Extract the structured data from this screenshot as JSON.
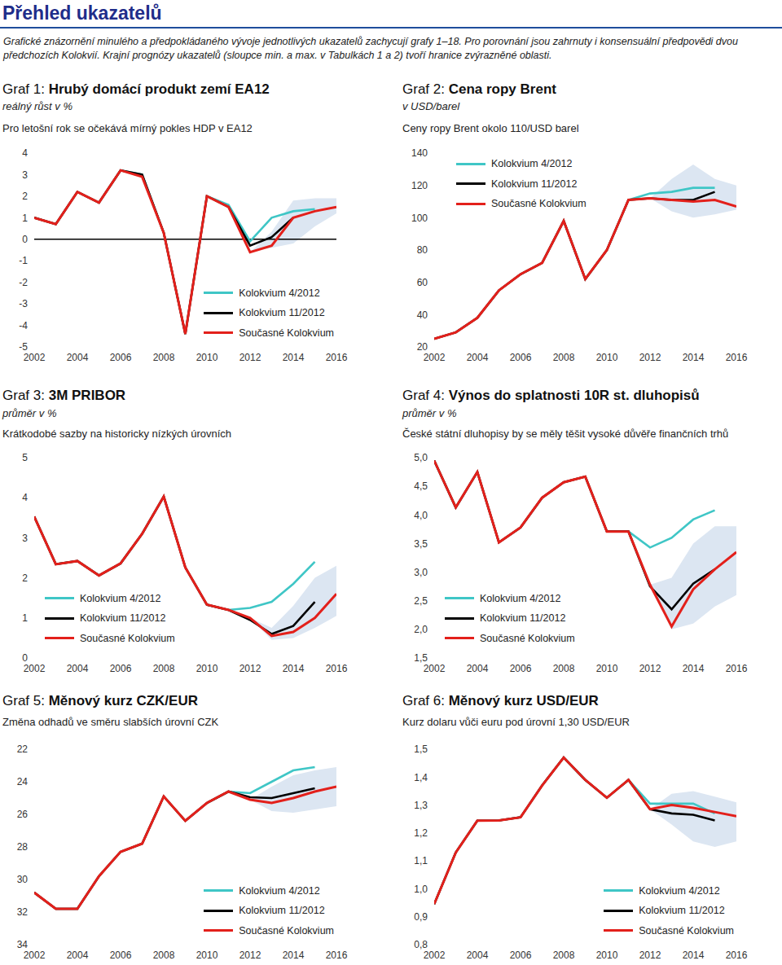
{
  "header": {
    "title": "Přehled ukazatelů",
    "text": "Grafické znázornění minulého a předpokládaného vývoje jednotlivých ukazatelů zachycují grafy 1–18. Pro porovnání jsou zahrnuty i konsensuální předpovědi dvou předchozích Kolokvií. Krajní prognózy ukazatelů (sloupce min. a max. v Tabulkách 1 a 2) tvoří hranice zvýrazněné oblasti."
  },
  "chart_data": [
    {
      "type": "line",
      "title": "Graf 1: Hrubý domácí produkt zemí EA12",
      "subtitle": "reálný růst v %",
      "annotation": "Pro letošní rok se očekává mírný pokles HDP v EA12",
      "grid": false,
      "legend": "lower right",
      "x": [
        2002,
        2003,
        2004,
        2005,
        2006,
        2007,
        2008,
        2009,
        2010,
        2011,
        2012,
        2013,
        2014,
        2015,
        2016
      ],
      "xlim": [
        2002,
        2016
      ],
      "xticks": [
        2002,
        2004,
        2006,
        2008,
        2010,
        2012,
        2014,
        2016
      ],
      "ylim": [
        -5,
        4
      ],
      "yticks": [
        -5,
        -4,
        -3,
        -2,
        -1,
        0,
        1,
        2,
        3,
        4
      ],
      "series": [
        {
          "name": "Kolokvium 4/2012",
          "color": "#3fc6c6",
          "values": [
            1.0,
            0.7,
            2.2,
            1.7,
            3.2,
            3.0,
            0.3,
            -4.4,
            2.0,
            1.6,
            -0.1,
            1.0,
            1.3,
            1.4,
            null
          ]
        },
        {
          "name": "Kolokvium 11/2012",
          "color": "#000000",
          "values": [
            1.0,
            0.7,
            2.2,
            1.7,
            3.2,
            3.0,
            0.3,
            -4.4,
            2.0,
            1.5,
            -0.3,
            0.1,
            1.0,
            null,
            null
          ]
        },
        {
          "name": "Současné Kolokvium",
          "color": "#e3201b",
          "values": [
            1.0,
            0.7,
            2.2,
            1.7,
            3.2,
            2.9,
            0.3,
            -4.4,
            2.0,
            1.5,
            -0.6,
            -0.3,
            1.0,
            1.3,
            1.5
          ]
        }
      ],
      "band": {
        "color": "#dce6f2",
        "x": [
          2012,
          2013,
          2014,
          2015,
          2016
        ],
        "min": [
          -0.6,
          -0.4,
          -0.2,
          0.6,
          1.2
        ],
        "max": [
          -0.6,
          0.35,
          1.8,
          1.9,
          1.9
        ]
      }
    },
    {
      "type": "line",
      "title": "Graf 2: Cena ropy Brent",
      "subtitle": "v USD/barel",
      "annotation": "Ceny ropy Brent okolo 110/USD barel",
      "grid": false,
      "legend": "upper left",
      "x": [
        2002,
        2003,
        2004,
        2005,
        2006,
        2007,
        2008,
        2009,
        2010,
        2011,
        2012,
        2013,
        2014,
        2015,
        2016
      ],
      "xlim": [
        2002,
        2016
      ],
      "xticks": [
        2002,
        2004,
        2006,
        2008,
        2010,
        2012,
        2014,
        2016
      ],
      "ylim": [
        20,
        140
      ],
      "yticks": [
        20,
        40,
        60,
        80,
        100,
        120,
        140
      ],
      "series": [
        {
          "name": "Kolokvium 4/2012",
          "color": "#3fc6c6",
          "values": [
            25,
            29,
            38,
            55,
            65,
            72,
            98,
            62,
            80,
            111,
            115,
            116,
            118.5,
            118.5,
            null
          ]
        },
        {
          "name": "Kolokvium 11/2012",
          "color": "#000000",
          "values": [
            25,
            29,
            38,
            55,
            65,
            72,
            98,
            62,
            80,
            111,
            112,
            111,
            111,
            116,
            null
          ]
        },
        {
          "name": "Současné Kolokvium",
          "color": "#e3201b",
          "values": [
            25,
            29,
            38,
            55,
            65,
            72,
            98,
            62,
            80,
            111,
            112,
            111,
            110,
            111,
            107
          ]
        }
      ],
      "band": {
        "color": "#dce6f2",
        "x": [
          2012,
          2013,
          2014,
          2015,
          2016
        ],
        "min": [
          112,
          104,
          100,
          102,
          105
        ],
        "max": [
          112,
          124,
          133,
          124,
          120
        ]
      }
    },
    {
      "type": "line",
      "title": "Graf 3: 3M PRIBOR",
      "subtitle": "průměr v %",
      "annotation": "Krátkodobé sazby na historicky nízkých úrovních",
      "grid": false,
      "legend": "lower left",
      "x": [
        2002,
        2003,
        2004,
        2005,
        2006,
        2007,
        2008,
        2009,
        2010,
        2011,
        2012,
        2013,
        2014,
        2015,
        2016
      ],
      "xlim": [
        2002,
        2016
      ],
      "xticks": [
        2002,
        2004,
        2006,
        2008,
        2010,
        2012,
        2014,
        2016
      ],
      "ylim": [
        0,
        5
      ],
      "yticks": [
        0,
        1,
        2,
        3,
        4,
        5
      ],
      "series": [
        {
          "name": "Kolokvium 4/2012",
          "color": "#3fc6c6",
          "values": [
            3.53,
            2.34,
            2.42,
            2.06,
            2.36,
            3.1,
            4.03,
            2.26,
            1.33,
            1.2,
            1.25,
            1.4,
            1.85,
            2.4,
            null
          ]
        },
        {
          "name": "Kolokvium 11/2012",
          "color": "#000000",
          "values": [
            3.53,
            2.34,
            2.42,
            2.06,
            2.36,
            3.1,
            4.03,
            2.26,
            1.33,
            1.2,
            0.95,
            0.6,
            0.8,
            1.4,
            null
          ]
        },
        {
          "name": "Současné Kolokvium",
          "color": "#e3201b",
          "values": [
            3.53,
            2.34,
            2.42,
            2.06,
            2.36,
            3.1,
            4.03,
            2.26,
            1.33,
            1.2,
            1.0,
            0.55,
            0.65,
            1.0,
            1.6
          ]
        }
      ],
      "band": {
        "color": "#dce6f2",
        "x": [
          2012,
          2013,
          2014,
          2015,
          2016
        ],
        "min": [
          1.0,
          0.45,
          0.5,
          0.75,
          1.05
        ],
        "max": [
          1.0,
          0.75,
          1.3,
          2.0,
          2.3
        ]
      }
    },
    {
      "type": "line",
      "title": "Graf 4: Výnos do splatnosti 10R st. dluhopisů",
      "subtitle": "průměr v %",
      "annotation": "České státní dluhopisy by se měly těšit vysoké důvěře finančních trhů",
      "grid": false,
      "legend": "lower left",
      "x": [
        2002,
        2003,
        2004,
        2005,
        2006,
        2007,
        2008,
        2009,
        2010,
        2011,
        2012,
        2013,
        2014,
        2015,
        2016
      ],
      "xlim": [
        2002,
        2016
      ],
      "xticks": [
        2002,
        2004,
        2006,
        2008,
        2010,
        2012,
        2014,
        2016
      ],
      "ylim": [
        1.5,
        5
      ],
      "yticks": [
        {
          "value": 1.5,
          "label": "1,5"
        },
        {
          "value": 2,
          "label": "2,0"
        },
        {
          "value": 2.5,
          "label": "2,5"
        },
        {
          "value": 3,
          "label": "3,0"
        },
        {
          "value": 3.5,
          "label": "3,5"
        },
        {
          "value": 4,
          "label": "4,0"
        },
        {
          "value": 4.5,
          "label": "4,5"
        },
        {
          "value": 5,
          "label": "5,0"
        }
      ],
      "series": [
        {
          "name": "Kolokvium 4/2012",
          "color": "#3fc6c6",
          "values": [
            4.95,
            4.13,
            4.75,
            3.52,
            3.78,
            4.3,
            4.57,
            4.67,
            3.71,
            3.71,
            3.43,
            3.6,
            3.92,
            4.08,
            null
          ]
        },
        {
          "name": "Kolokvium 11/2012",
          "color": "#000000",
          "values": [
            4.95,
            4.13,
            4.75,
            3.52,
            3.78,
            4.3,
            4.57,
            4.67,
            3.71,
            3.71,
            2.75,
            2.35,
            2.8,
            3.05,
            null
          ]
        },
        {
          "name": "Současné Kolokvium",
          "color": "#e3201b",
          "values": [
            4.95,
            4.13,
            4.75,
            3.52,
            3.78,
            4.3,
            4.57,
            4.67,
            3.71,
            3.71,
            2.78,
            2.05,
            2.7,
            3.05,
            3.35
          ]
        }
      ],
      "band": {
        "color": "#dce6f2",
        "x": [
          2012,
          2013,
          2014,
          2015,
          2016
        ],
        "min": [
          2.78,
          2.0,
          2.1,
          2.4,
          2.6
        ],
        "max": [
          2.78,
          2.9,
          3.5,
          3.8,
          3.8
        ]
      }
    },
    {
      "type": "line",
      "title": "Graf 5: Měnový kurz CZK/EUR",
      "annotation": "Změna odhadů ve směru slabších úrovní CZK",
      "grid": false,
      "legend": "lower right",
      "x": [
        2002,
        2003,
        2004,
        2005,
        2006,
        2007,
        2008,
        2009,
        2010,
        2011,
        2012,
        2013,
        2014,
        2015,
        2016
      ],
      "xlim": [
        2002,
        2016
      ],
      "xticks": [
        2002,
        2004,
        2006,
        2008,
        2010,
        2012,
        2014,
        2016
      ],
      "ylim": [
        34,
        22
      ],
      "yticks": [
        22,
        24,
        26,
        28,
        30,
        32,
        34
      ],
      "series": [
        {
          "name": "Kolokvium 4/2012",
          "color": "#3fc6c6",
          "values": [
            30.8,
            31.8,
            31.8,
            29.8,
            28.3,
            27.8,
            24.9,
            26.4,
            25.3,
            24.6,
            24.7,
            24.0,
            23.3,
            23.1,
            null
          ]
        },
        {
          "name": "Kolokvium 11/2012",
          "color": "#000000",
          "values": [
            30.8,
            31.8,
            31.8,
            29.8,
            28.3,
            27.8,
            24.9,
            26.4,
            25.3,
            24.6,
            24.95,
            25.0,
            24.7,
            24.4,
            null
          ]
        },
        {
          "name": "Současné Kolokvium",
          "color": "#e3201b",
          "values": [
            30.8,
            31.8,
            31.8,
            29.8,
            28.3,
            27.8,
            24.9,
            26.4,
            25.3,
            24.6,
            25.1,
            25.3,
            25.0,
            24.6,
            24.3
          ]
        }
      ],
      "band": {
        "color": "#dce6f2",
        "x": [
          2012,
          2013,
          2014,
          2015,
          2016
        ],
        "min": [
          25.1,
          24.3,
          23.6,
          23.3,
          23.1
        ],
        "max": [
          25.1,
          25.8,
          25.9,
          25.7,
          25.5
        ]
      }
    },
    {
      "type": "line",
      "title": "Graf 6: Měnový kurz USD/EUR",
      "annotation": "Kurz dolaru vůči euru pod úrovní 1,30 USD/EUR",
      "grid": false,
      "legend": "lower right",
      "x": [
        2002,
        2003,
        2004,
        2005,
        2006,
        2007,
        2008,
        2009,
        2010,
        2011,
        2012,
        2013,
        2014,
        2015,
        2016
      ],
      "xlim": [
        2002,
        2016
      ],
      "xticks": [
        2002,
        2004,
        2006,
        2008,
        2010,
        2012,
        2014,
        2016
      ],
      "ylim": [
        0.8,
        1.5
      ],
      "yticks": [
        {
          "value": 0.8,
          "label": "0,8"
        },
        {
          "value": 0.9,
          "label": "0,9"
        },
        {
          "value": 1,
          "label": "1,0"
        },
        {
          "value": 1.1,
          "label": "1,1"
        },
        {
          "value": 1.2,
          "label": "1,2"
        },
        {
          "value": 1.3,
          "label": "1,3"
        },
        {
          "value": 1.4,
          "label": "1,4"
        },
        {
          "value": 1.5,
          "label": "1,5"
        }
      ],
      "series": [
        {
          "name": "Kolokvium 4/2012",
          "color": "#3fc6c6",
          "values": [
            0.945,
            1.13,
            1.244,
            1.245,
            1.256,
            1.37,
            1.47,
            1.39,
            1.326,
            1.39,
            1.305,
            1.305,
            1.305,
            1.27,
            null
          ]
        },
        {
          "name": "Kolokvium 11/2012",
          "color": "#000000",
          "values": [
            0.945,
            1.13,
            1.244,
            1.245,
            1.256,
            1.37,
            1.47,
            1.39,
            1.326,
            1.39,
            1.285,
            1.27,
            1.265,
            1.245,
            null
          ]
        },
        {
          "name": "Současné Kolokvium",
          "color": "#e3201b",
          "values": [
            0.945,
            1.13,
            1.244,
            1.245,
            1.256,
            1.37,
            1.47,
            1.39,
            1.326,
            1.39,
            1.285,
            1.3,
            1.29,
            1.275,
            1.26
          ]
        }
      ],
      "band": {
        "color": "#dce6f2",
        "x": [
          2012,
          2013,
          2014,
          2015,
          2016
        ],
        "min": [
          1.285,
          1.23,
          1.17,
          1.15,
          1.17
        ],
        "max": [
          1.285,
          1.34,
          1.35,
          1.33,
          1.31
        ]
      }
    }
  ]
}
